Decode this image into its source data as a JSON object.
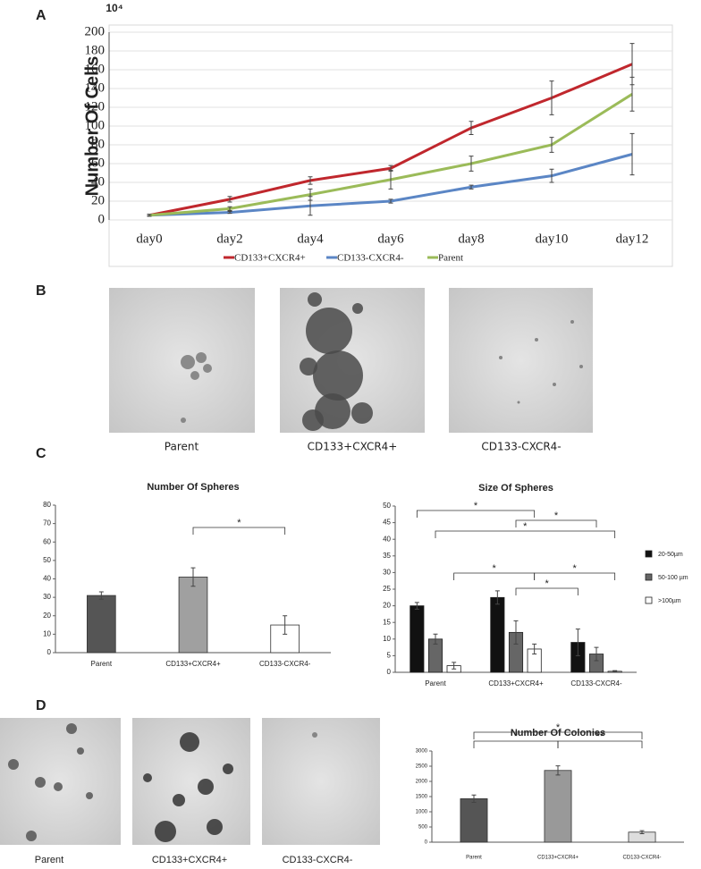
{
  "panel_labels": [
    "A",
    "B",
    "C",
    "D"
  ],
  "panel_b_captions": [
    "Parent",
    "CD133+CXCR4+",
    "CD133-CXCR4-"
  ],
  "panel_d_captions": [
    "Parent",
    "CD133+CXCR4+",
    "CD133-CXCR4-"
  ],
  "chart_data": [
    {
      "type": "line",
      "y_label": "Number Of Cells",
      "y_unit": "10⁴",
      "categories": [
        "day0",
        "day2",
        "day4",
        "day6",
        "day8",
        "day10",
        "day12"
      ],
      "series": [
        {
          "name": "CD133+CXCR4+",
          "color": "#c0272d",
          "values": [
            5,
            22,
            42,
            55,
            98,
            130,
            166
          ],
          "errors": [
            1,
            3,
            4,
            3,
            7,
            18,
            22
          ]
        },
        {
          "name": "CD133-CXCR4-",
          "color": "#5b86c5",
          "values": [
            5,
            8,
            15,
            20,
            35,
            47,
            70
          ],
          "errors": [
            1,
            1,
            10,
            2,
            2,
            7,
            22
          ]
        },
        {
          "name": "Parent",
          "color": "#9bbb59",
          "values": [
            5,
            12,
            27,
            43,
            60,
            80,
            134
          ],
          "errors": [
            1,
            2,
            6,
            10,
            8,
            8,
            18
          ]
        }
      ],
      "ylim": [
        0,
        200
      ],
      "yticks": [
        0,
        20,
        40,
        60,
        80,
        100,
        120,
        140,
        160,
        180,
        200
      ],
      "grid": true
    },
    {
      "type": "bar",
      "title": "Number Of Spheres",
      "categories": [
        "Parent",
        "CD133+CXCR4+",
        "CD133-CXCR4-"
      ],
      "values": [
        31,
        41,
        15
      ],
      "errors": [
        2,
        5,
        5
      ],
      "colors": [
        "#555555",
        "#a0a0a0",
        "#ffffff"
      ],
      "ylim": [
        0,
        80
      ],
      "yticks": [
        0,
        10,
        20,
        30,
        40,
        50,
        60,
        70,
        80
      ],
      "grid": false,
      "brackets": [
        {
          "from": "CD133+CXCR4+",
          "to": "CD133-CXCR4-",
          "label": "*"
        }
      ]
    },
    {
      "type": "grouped-bar",
      "title": "Size Of Spheres",
      "categories": [
        "Parent",
        "CD133+CXCR4+",
        "CD133-CXCR4-"
      ],
      "series": [
        {
          "name": "20-50µm",
          "color": "#111111",
          "values": [
            20,
            22.5,
            9
          ],
          "errors": [
            1,
            2,
            4
          ]
        },
        {
          "name": "50-100 µm",
          "color": "#666666",
          "values": [
            10,
            12,
            5.5
          ],
          "errors": [
            1.5,
            3.5,
            2
          ]
        },
        {
          "name": ">100µm",
          "color": "#ffffff",
          "values": [
            2,
            7,
            0.3
          ],
          "errors": [
            1,
            1.5,
            0.2
          ]
        }
      ],
      "ylim": [
        0,
        50
      ],
      "yticks": [
        0,
        5,
        10,
        15,
        20,
        25,
        30,
        35,
        40,
        45,
        50
      ],
      "grid": false,
      "legend": "right",
      "brackets": [
        {
          "from": [
            "Parent",
            "20-50µm"
          ],
          "to": [
            "CD133+CXCR4+",
            ">100µm"
          ],
          "label": "*"
        },
        {
          "from": [
            "CD133+CXCR4+",
            "50-100 µm"
          ],
          "to": [
            "CD133-CXCR4-",
            "50-100 µm"
          ],
          "label": "*"
        },
        {
          "from": [
            "Parent",
            "50-100 µm"
          ],
          "to": [
            "CD133-CXCR4-",
            ">100µm"
          ],
          "label": "*"
        },
        {
          "from": [
            "Parent",
            ">100µm"
          ],
          "to": [
            "CD133+CXCR4+",
            ">100µm"
          ],
          "label": "*"
        },
        {
          "from": [
            "CD133+CXCR4+",
            ">100µm"
          ],
          "to": [
            "CD133-CXCR4-",
            ">100µm"
          ],
          "label": "*"
        },
        {
          "from": [
            "CD133+CXCR4+",
            "50-100 µm"
          ],
          "to": [
            "CD133-CXCR4-",
            "20-50µm"
          ],
          "label": "*"
        }
      ]
    },
    {
      "type": "bar",
      "title": "Number Of Colonies",
      "categories": [
        "Parent",
        "CD133+CXCR4+",
        "CD133-CXCR4-"
      ],
      "values": [
        1430,
        2360,
        330
      ],
      "errors": [
        120,
        150,
        50
      ],
      "colors": [
        "#555555",
        "#999999",
        "#dddddd"
      ],
      "ylim": [
        0,
        3000
      ],
      "yticks": [
        0,
        500,
        1000,
        1500,
        2000,
        2500,
        3000
      ],
      "grid": false,
      "brackets": [
        {
          "from": "Parent",
          "to": "CD133+CXCR4+",
          "label": "*"
        },
        {
          "from": "CD133+CXCR4+",
          "to": "CD133-CXCR4-",
          "label": "**"
        },
        {
          "from": "Parent",
          "to": "CD133-CXCR4-",
          "label": "*"
        }
      ]
    }
  ]
}
